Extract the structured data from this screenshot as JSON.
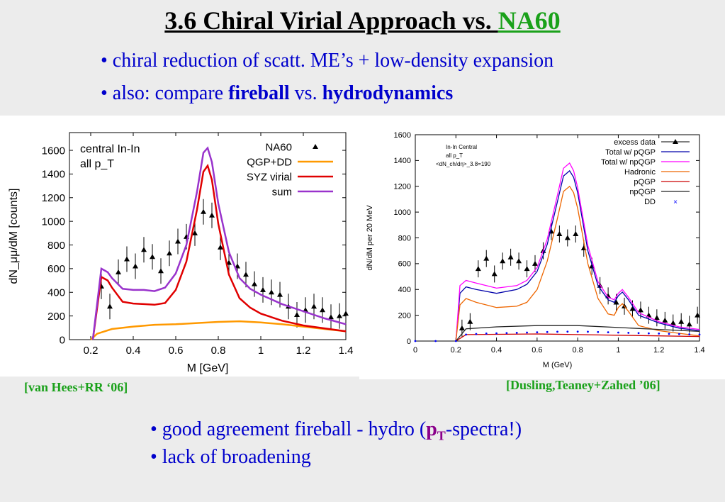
{
  "title": {
    "part1": "3.6  Chiral Virial Approach vs. ",
    "part2": "NA60"
  },
  "bullets_top": [
    {
      "text": "• chiral reduction of scatt. ME’s + low-density expansion"
    },
    {
      "pre": "• also: compare ",
      "b1": "fireball",
      "mid": " vs. ",
      "b2": "hydrodynamics"
    }
  ],
  "bullets_bottom": [
    {
      "pre": "• good agreement fireball - hydro (",
      "p": "p",
      "T": "T",
      "post": "-spectra!)"
    },
    {
      "text": "• lack of broadening"
    }
  ],
  "citations": {
    "left": "[van Hees+RR ‘06]",
    "right": "[Dusling,Teaney+Zahed ’06]"
  },
  "chart_data": [
    {
      "type": "line",
      "xlabel": "M [GeV]",
      "ylabel": "dN_μμ/dM [counts]",
      "annotation": [
        "central In-In",
        "all p_T"
      ],
      "xlim": [
        0.1,
        1.4
      ],
      "ylim": [
        0,
        1750
      ],
      "xticks": [
        "0.2",
        "0.4",
        "0.6",
        "0.8",
        "1",
        "1.2",
        "1.4"
      ],
      "yticks": [
        "0",
        "200",
        "400",
        "600",
        "800",
        "1000",
        "1200",
        "1400",
        "1600"
      ],
      "legend_position": "top-right",
      "series": [
        {
          "name": "NA60",
          "kind": "points",
          "color": "#000000",
          "x": [
            0.25,
            0.29,
            0.33,
            0.37,
            0.41,
            0.45,
            0.49,
            0.53,
            0.57,
            0.61,
            0.65,
            0.69,
            0.73,
            0.77,
            0.81,
            0.85,
            0.89,
            0.93,
            0.97,
            1.01,
            1.05,
            1.09,
            1.13,
            1.17,
            1.21,
            1.25,
            1.29,
            1.33,
            1.37,
            1.4
          ],
          "y": [
            450,
            280,
            570,
            680,
            620,
            760,
            700,
            580,
            730,
            830,
            870,
            900,
            1080,
            1050,
            780,
            650,
            620,
            550,
            470,
            420,
            400,
            380,
            280,
            210,
            250,
            280,
            250,
            190,
            200,
            220
          ]
        },
        {
          "name": "QGP+DD",
          "kind": "line",
          "color": "#ff9900",
          "x": [
            0.2,
            0.23,
            0.3,
            0.4,
            0.5,
            0.6,
            0.7,
            0.8,
            0.9,
            1.0,
            1.1,
            1.2,
            1.3,
            1.4
          ],
          "y": [
            0,
            50,
            90,
            110,
            125,
            130,
            140,
            150,
            155,
            145,
            130,
            110,
            90,
            70
          ]
        },
        {
          "name": "SYZ virial",
          "kind": "line",
          "color": "#e00000",
          "x": [
            0.21,
            0.25,
            0.28,
            0.3,
            0.35,
            0.4,
            0.45,
            0.5,
            0.55,
            0.6,
            0.65,
            0.7,
            0.73,
            0.75,
            0.77,
            0.8,
            0.85,
            0.9,
            0.95,
            1.0,
            1.1,
            1.2,
            1.3,
            1.4
          ],
          "y": [
            0,
            530,
            500,
            440,
            320,
            305,
            300,
            295,
            310,
            420,
            660,
            1100,
            1420,
            1470,
            1350,
            980,
            550,
            350,
            270,
            220,
            160,
            120,
            95,
            70
          ]
        },
        {
          "name": "sum",
          "kind": "line",
          "color": "#9933cc",
          "x": [
            0.21,
            0.25,
            0.28,
            0.3,
            0.35,
            0.4,
            0.45,
            0.5,
            0.55,
            0.6,
            0.65,
            0.7,
            0.73,
            0.75,
            0.77,
            0.8,
            0.85,
            0.9,
            0.95,
            1.0,
            1.1,
            1.2,
            1.3,
            1.4
          ],
          "y": [
            0,
            600,
            570,
            520,
            430,
            420,
            420,
            410,
            440,
            560,
            800,
            1250,
            1580,
            1620,
            1500,
            1150,
            740,
            520,
            430,
            380,
            300,
            240,
            180,
            130
          ]
        }
      ]
    },
    {
      "type": "line",
      "xlabel": "M (GeV)",
      "ylabel": "dN/dM per 20 MeV",
      "annotation": [
        "In-In Central",
        "all p_T",
        "<dN_ch/dη>_3.8=190"
      ],
      "xlim": [
        0,
        1.4
      ],
      "ylim": [
        0,
        1600
      ],
      "xticks": [
        "0",
        "0.2",
        "0.4",
        "0.6",
        "0.8",
        "1",
        "1.2",
        "1.4"
      ],
      "yticks": [
        "0",
        "200",
        "400",
        "600",
        "800",
        "1000",
        "1200",
        "1400",
        "1600"
      ],
      "legend_position": "top-right",
      "series": [
        {
          "name": "excess data",
          "kind": "points",
          "color": "#000000",
          "x": [
            0.23,
            0.27,
            0.31,
            0.35,
            0.39,
            0.43,
            0.47,
            0.51,
            0.55,
            0.59,
            0.63,
            0.67,
            0.71,
            0.75,
            0.79,
            0.83,
            0.87,
            0.91,
            0.95,
            0.99,
            1.03,
            1.07,
            1.11,
            1.15,
            1.19,
            1.23,
            1.27,
            1.31,
            1.35,
            1.39
          ],
          "y": [
            100,
            150,
            560,
            640,
            520,
            620,
            650,
            620,
            560,
            600,
            700,
            850,
            830,
            800,
            830,
            720,
            580,
            430,
            350,
            300,
            270,
            250,
            240,
            200,
            180,
            160,
            140,
            150,
            130,
            200
          ]
        },
        {
          "name": "Total w/ pQGP",
          "kind": "line",
          "color": "#0000aa",
          "x": [
            0.2,
            0.22,
            0.25,
            0.3,
            0.4,
            0.5,
            0.55,
            0.6,
            0.65,
            0.7,
            0.73,
            0.76,
            0.78,
            0.8,
            0.85,
            0.9,
            0.95,
            0.98,
            1.0,
            1.02,
            1.05,
            1.1,
            1.2,
            1.3,
            1.4
          ],
          "y": [
            0,
            370,
            420,
            400,
            370,
            400,
            440,
            540,
            750,
            1080,
            1280,
            1320,
            1270,
            1150,
            700,
            430,
            320,
            300,
            350,
            380,
            320,
            200,
            140,
            100,
            80
          ]
        },
        {
          "name": "Total w/ npQGP",
          "kind": "line",
          "color": "#ff00ff",
          "x": [
            0.2,
            0.22,
            0.25,
            0.3,
            0.4,
            0.5,
            0.55,
            0.6,
            0.65,
            0.7,
            0.73,
            0.76,
            0.78,
            0.8,
            0.85,
            0.9,
            0.95,
            0.98,
            1.0,
            1.02,
            1.05,
            1.1,
            1.2,
            1.3,
            1.4
          ],
          "y": [
            0,
            430,
            470,
            450,
            410,
            430,
            470,
            570,
            790,
            1130,
            1340,
            1380,
            1320,
            1190,
            740,
            460,
            340,
            320,
            370,
            400,
            340,
            220,
            150,
            110,
            90
          ]
        },
        {
          "name": "Hadronic",
          "kind": "line",
          "color": "#ee6600",
          "x": [
            0.2,
            0.22,
            0.25,
            0.3,
            0.4,
            0.5,
            0.55,
            0.6,
            0.65,
            0.7,
            0.73,
            0.76,
            0.78,
            0.8,
            0.85,
            0.9,
            0.95,
            0.98,
            1.0,
            1.02,
            1.05,
            1.1,
            1.2,
            1.3,
            1.4
          ],
          "y": [
            0,
            280,
            330,
            300,
            260,
            270,
            300,
            400,
            620,
            950,
            1160,
            1200,
            1150,
            1030,
            600,
            330,
            210,
            200,
            260,
            290,
            230,
            120,
            80,
            60,
            40
          ]
        },
        {
          "name": "pQGP",
          "kind": "line",
          "color": "#cc0000",
          "x": [
            0.2,
            0.25,
            0.4,
            0.6,
            0.8,
            1.0,
            1.2,
            1.4
          ],
          "y": [
            0,
            50,
            52,
            55,
            50,
            45,
            40,
            35
          ]
        },
        {
          "name": "npQGP",
          "kind": "line",
          "color": "#222222",
          "x": [
            0.2,
            0.25,
            0.4,
            0.6,
            0.8,
            1.0,
            1.2,
            1.4
          ],
          "y": [
            0,
            95,
            110,
            120,
            120,
            105,
            90,
            75
          ]
        },
        {
          "name": "DD",
          "kind": "dots",
          "color": "#0000ff",
          "x": [
            0,
            0.1,
            0.2,
            0.25,
            0.3,
            0.35,
            0.4,
            0.45,
            0.5,
            0.55,
            0.6,
            0.65,
            0.7,
            0.75,
            0.8,
            0.85,
            0.9,
            0.95,
            1.0,
            1.05,
            1.1,
            1.15,
            1.2,
            1.25,
            1.3,
            1.35,
            1.4
          ],
          "y": [
            0,
            0,
            0,
            50,
            55,
            58,
            60,
            62,
            64,
            66,
            68,
            70,
            72,
            73,
            73,
            72,
            70,
            68,
            66,
            64,
            62,
            60,
            58,
            56,
            54,
            52,
            50
          ]
        }
      ]
    }
  ]
}
